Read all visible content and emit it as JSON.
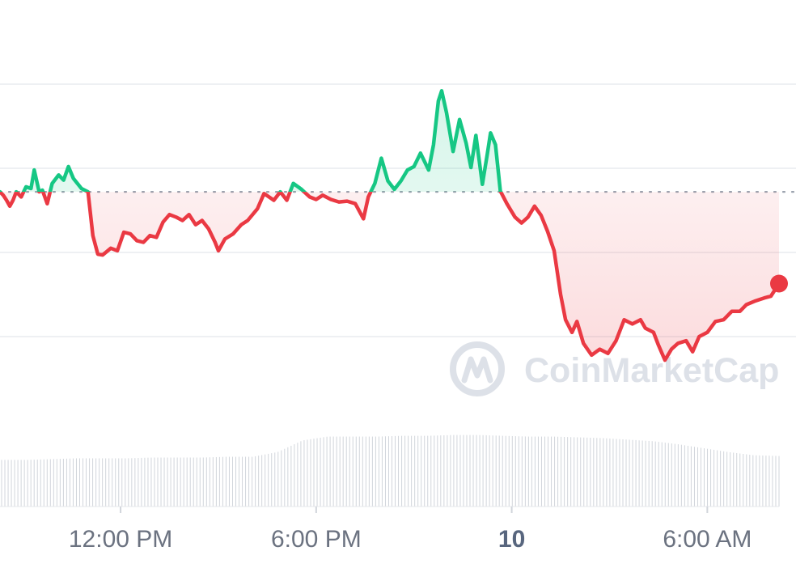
{
  "watermark": {
    "text": "CoinMarketCap",
    "icon": "coinmarketcap-logo-icon"
  },
  "colors": {
    "up": "#16c784",
    "down": "#ea3943",
    "grid": "#eef0f3",
    "volume": "#d1d5db",
    "baseline": "#9ca3af"
  },
  "chart_data": {
    "type": "line",
    "title": "",
    "xlabel": "",
    "ylabel": "",
    "grid": true,
    "baseline_style": "dotted",
    "x_ticks": [
      {
        "label": "12:00 PM",
        "t": 6,
        "bold": false
      },
      {
        "label": "6:00 PM",
        "t": 12,
        "bold": false
      },
      {
        "label": "10",
        "t": 18,
        "bold": true
      },
      {
        "label": "6:00 AM",
        "t": 24,
        "bold": false
      }
    ],
    "x_range": [
      2.3,
      26.2
    ],
    "y_range": [
      0,
      5
    ],
    "y_gridlines": [
      1,
      2,
      3,
      4
    ],
    "baseline": 2.72,
    "series": [
      {
        "values": [
          [
            2.3,
            2.72
          ],
          [
            2.4,
            2.68
          ],
          [
            2.5,
            2.62
          ],
          [
            2.6,
            2.55
          ],
          [
            2.7,
            2.62
          ],
          [
            2.8,
            2.72
          ],
          [
            2.95,
            2.66
          ],
          [
            3.1,
            2.78
          ],
          [
            3.25,
            2.76
          ],
          [
            3.35,
            2.98
          ],
          [
            3.5,
            2.72
          ],
          [
            3.6,
            2.74
          ],
          [
            3.75,
            2.58
          ],
          [
            3.9,
            2.82
          ],
          [
            4.1,
            2.92
          ],
          [
            4.25,
            2.86
          ],
          [
            4.4,
            3.02
          ],
          [
            4.55,
            2.88
          ],
          [
            4.8,
            2.76
          ],
          [
            5.0,
            2.72
          ],
          [
            5.15,
            2.2
          ],
          [
            5.3,
            1.98
          ],
          [
            5.45,
            1.97
          ],
          [
            5.7,
            2.05
          ],
          [
            5.9,
            2.02
          ],
          [
            6.1,
            2.24
          ],
          [
            6.3,
            2.22
          ],
          [
            6.5,
            2.14
          ],
          [
            6.7,
            2.12
          ],
          [
            6.9,
            2.2
          ],
          [
            7.1,
            2.18
          ],
          [
            7.3,
            2.36
          ],
          [
            7.5,
            2.45
          ],
          [
            7.7,
            2.42
          ],
          [
            7.9,
            2.38
          ],
          [
            8.1,
            2.45
          ],
          [
            8.3,
            2.33
          ],
          [
            8.5,
            2.38
          ],
          [
            8.7,
            2.28
          ],
          [
            8.9,
            2.12
          ],
          [
            9.0,
            2.02
          ],
          [
            9.2,
            2.16
          ],
          [
            9.45,
            2.22
          ],
          [
            9.7,
            2.33
          ],
          [
            9.9,
            2.38
          ],
          [
            10.2,
            2.52
          ],
          [
            10.4,
            2.7
          ],
          [
            10.7,
            2.62
          ],
          [
            10.9,
            2.72
          ],
          [
            11.1,
            2.62
          ],
          [
            11.3,
            2.82
          ],
          [
            11.55,
            2.75
          ],
          [
            11.8,
            2.66
          ],
          [
            12.0,
            2.63
          ],
          [
            12.2,
            2.68
          ],
          [
            12.45,
            2.63
          ],
          [
            12.7,
            2.6
          ],
          [
            12.95,
            2.61
          ],
          [
            13.2,
            2.58
          ],
          [
            13.45,
            2.4
          ],
          [
            13.6,
            2.66
          ],
          [
            13.8,
            2.82
          ],
          [
            14.0,
            3.12
          ],
          [
            14.2,
            2.85
          ],
          [
            14.4,
            2.75
          ],
          [
            14.6,
            2.85
          ],
          [
            14.8,
            2.98
          ],
          [
            15.0,
            3.02
          ],
          [
            15.2,
            3.18
          ],
          [
            15.45,
            2.98
          ],
          [
            15.6,
            3.28
          ],
          [
            15.75,
            3.8
          ],
          [
            15.85,
            3.92
          ],
          [
            16.0,
            3.66
          ],
          [
            16.2,
            3.2
          ],
          [
            16.4,
            3.58
          ],
          [
            16.6,
            3.3
          ],
          [
            16.75,
            3.01
          ],
          [
            16.9,
            3.39
          ],
          [
            17.1,
            2.81
          ],
          [
            17.25,
            3.17
          ],
          [
            17.35,
            3.42
          ],
          [
            17.5,
            3.28
          ],
          [
            17.65,
            2.73
          ],
          [
            17.85,
            2.58
          ],
          [
            18.1,
            2.42
          ],
          [
            18.3,
            2.35
          ],
          [
            18.5,
            2.42
          ],
          [
            18.7,
            2.55
          ],
          [
            18.9,
            2.44
          ],
          [
            19.1,
            2.25
          ],
          [
            19.3,
            2.02
          ],
          [
            19.5,
            1.5
          ],
          [
            19.65,
            1.2
          ],
          [
            19.85,
            1.05
          ],
          [
            20.0,
            1.18
          ],
          [
            20.2,
            0.92
          ],
          [
            20.45,
            0.78
          ],
          [
            20.7,
            0.85
          ],
          [
            20.95,
            0.8
          ],
          [
            21.2,
            0.95
          ],
          [
            21.45,
            1.2
          ],
          [
            21.7,
            1.15
          ],
          [
            21.95,
            1.2
          ],
          [
            22.1,
            1.1
          ],
          [
            22.35,
            1.05
          ],
          [
            22.5,
            0.9
          ],
          [
            22.7,
            0.72
          ],
          [
            22.9,
            0.85
          ],
          [
            23.1,
            0.92
          ],
          [
            23.35,
            0.95
          ],
          [
            23.55,
            0.82
          ],
          [
            23.75,
            1.0
          ],
          [
            24.0,
            1.05
          ],
          [
            24.25,
            1.18
          ],
          [
            24.5,
            1.2
          ],
          [
            24.75,
            1.3
          ],
          [
            25.0,
            1.3
          ],
          [
            25.2,
            1.38
          ],
          [
            25.45,
            1.42
          ],
          [
            25.75,
            1.46
          ],
          [
            25.95,
            1.48
          ],
          [
            26.2,
            1.63
          ]
        ]
      }
    ],
    "volume": {
      "values": [
        0.6,
        0.6,
        0.61,
        0.62,
        0.62,
        0.62,
        0.63,
        0.63,
        0.63,
        0.64,
        0.64,
        0.7,
        0.85,
        0.9,
        0.9,
        0.9,
        0.91,
        0.91,
        0.92,
        0.92,
        0.91,
        0.9,
        0.9,
        0.89,
        0.88,
        0.86,
        0.84,
        0.8,
        0.75,
        0.7,
        0.66,
        0.65
      ]
    }
  }
}
